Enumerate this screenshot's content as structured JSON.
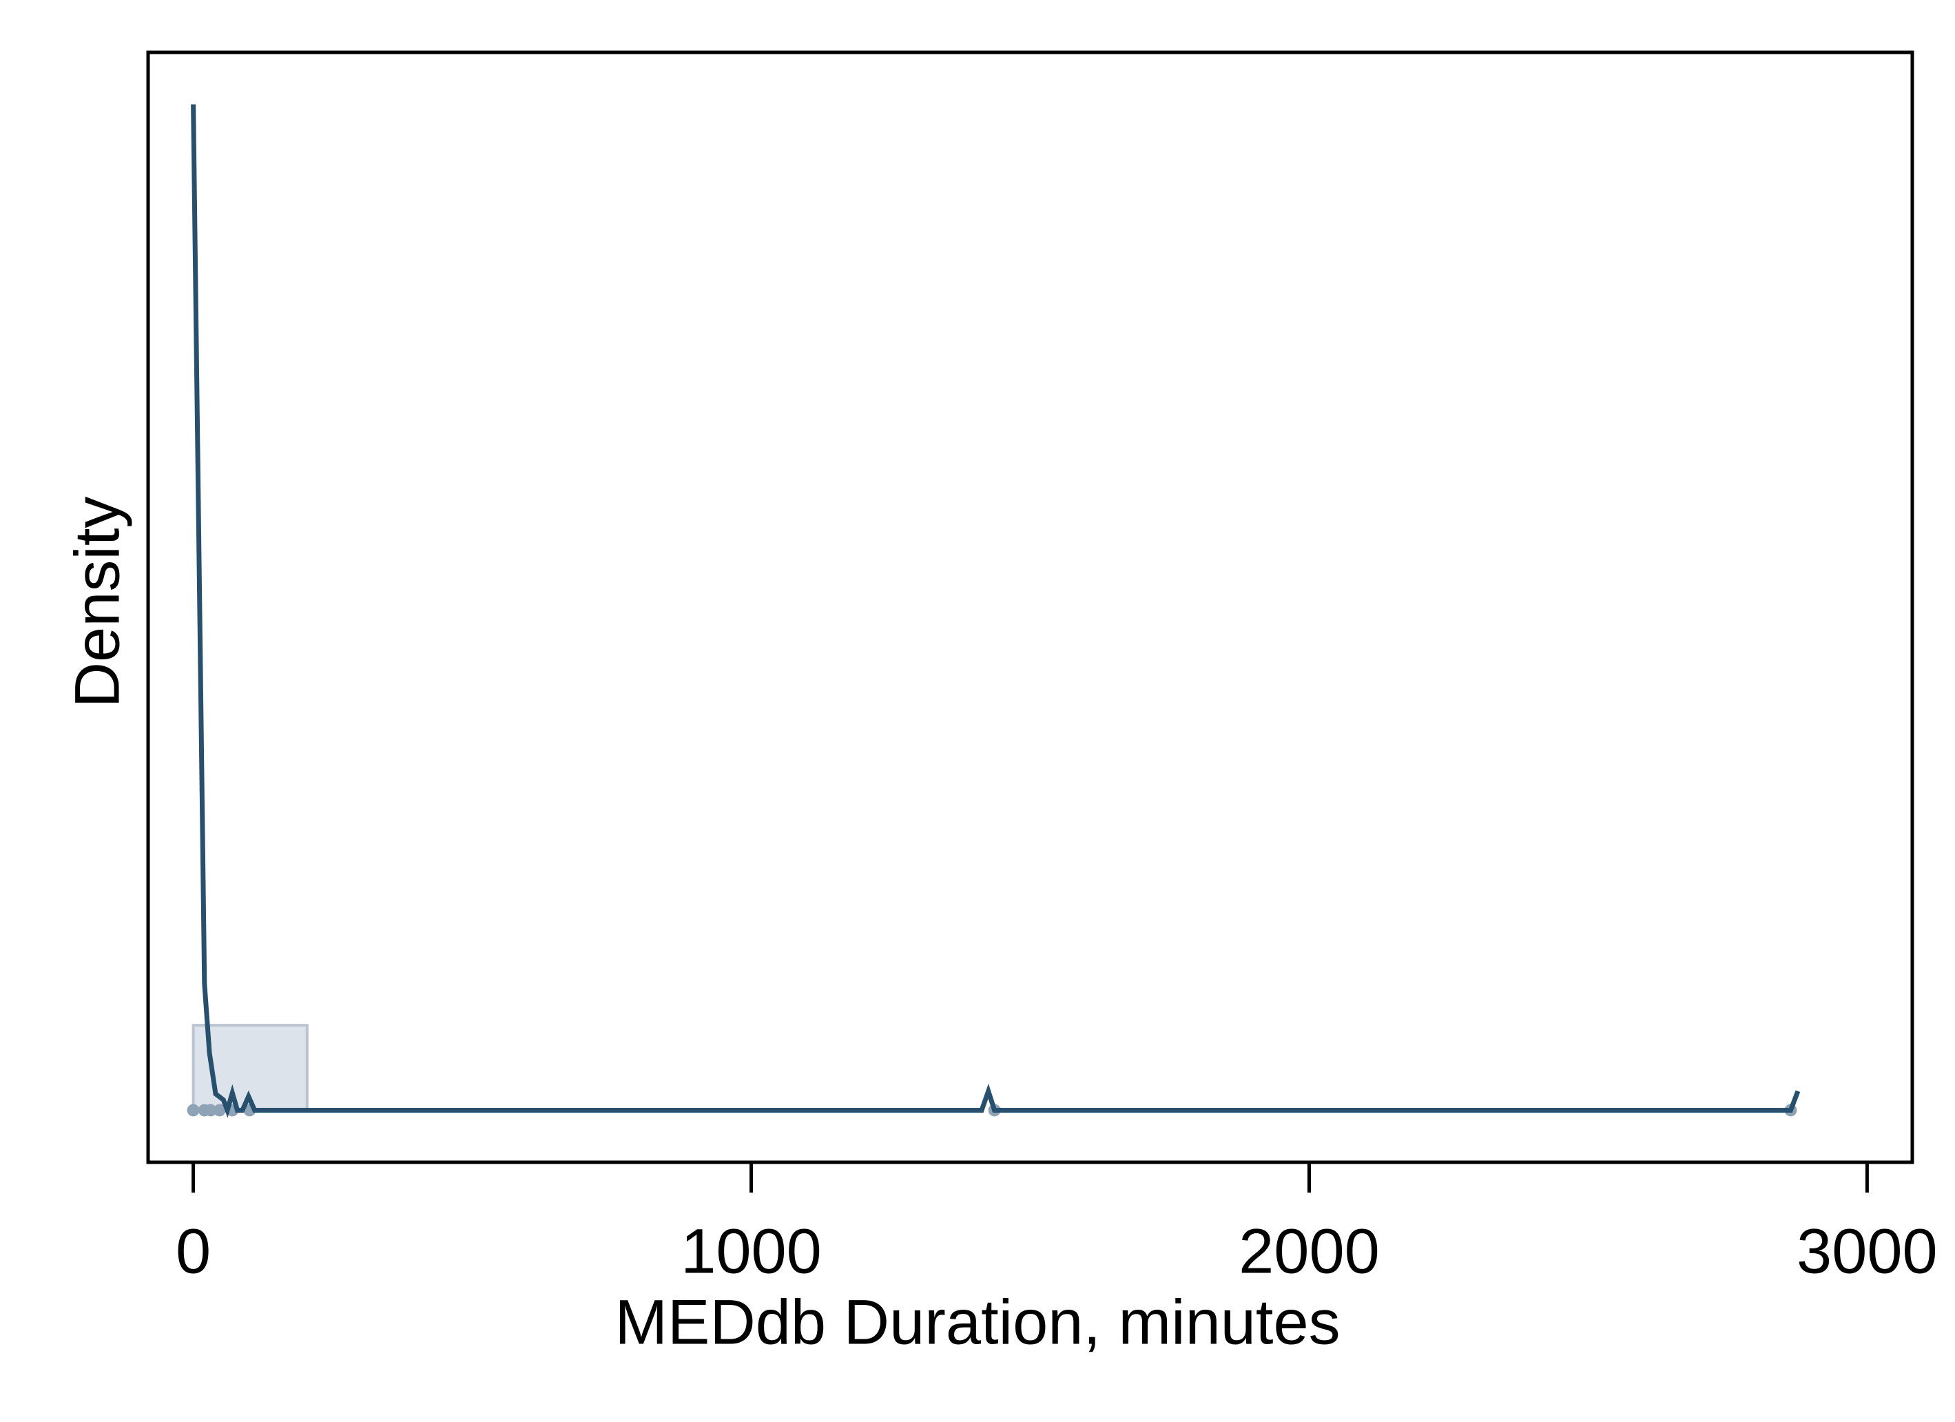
{
  "chart_data": {
    "type": "kdensity",
    "xlabel": "MEDdb Duration, minutes",
    "ylabel": "Density",
    "xlim": [
      -81,
      3081
    ],
    "ylim": [
      -0.003,
      0.061
    ],
    "xticks": [
      0,
      1000,
      2000,
      3000
    ],
    "color": "#27506f",
    "x": [
      0,
      20,
      29,
      40,
      54,
      61,
      70,
      79,
      88,
      99,
      110,
      1413,
      1425,
      1436,
      2863,
      2876
    ],
    "values": [
      0.058,
      0.0073,
      0.0033,
      0.00094,
      0.0006,
      0,
      0.001,
      0,
      0,
      0.0008,
      0,
      0,
      0.0011,
      0,
      0,
      0.0011
    ],
    "histogram": {
      "bins": [
        0,
        204
      ],
      "values": [
        0.0049
      ],
      "color": "#dde3ea"
    },
    "rug": [
      0,
      20,
      31,
      47,
      70,
      101,
      1436,
      2863
    ]
  }
}
